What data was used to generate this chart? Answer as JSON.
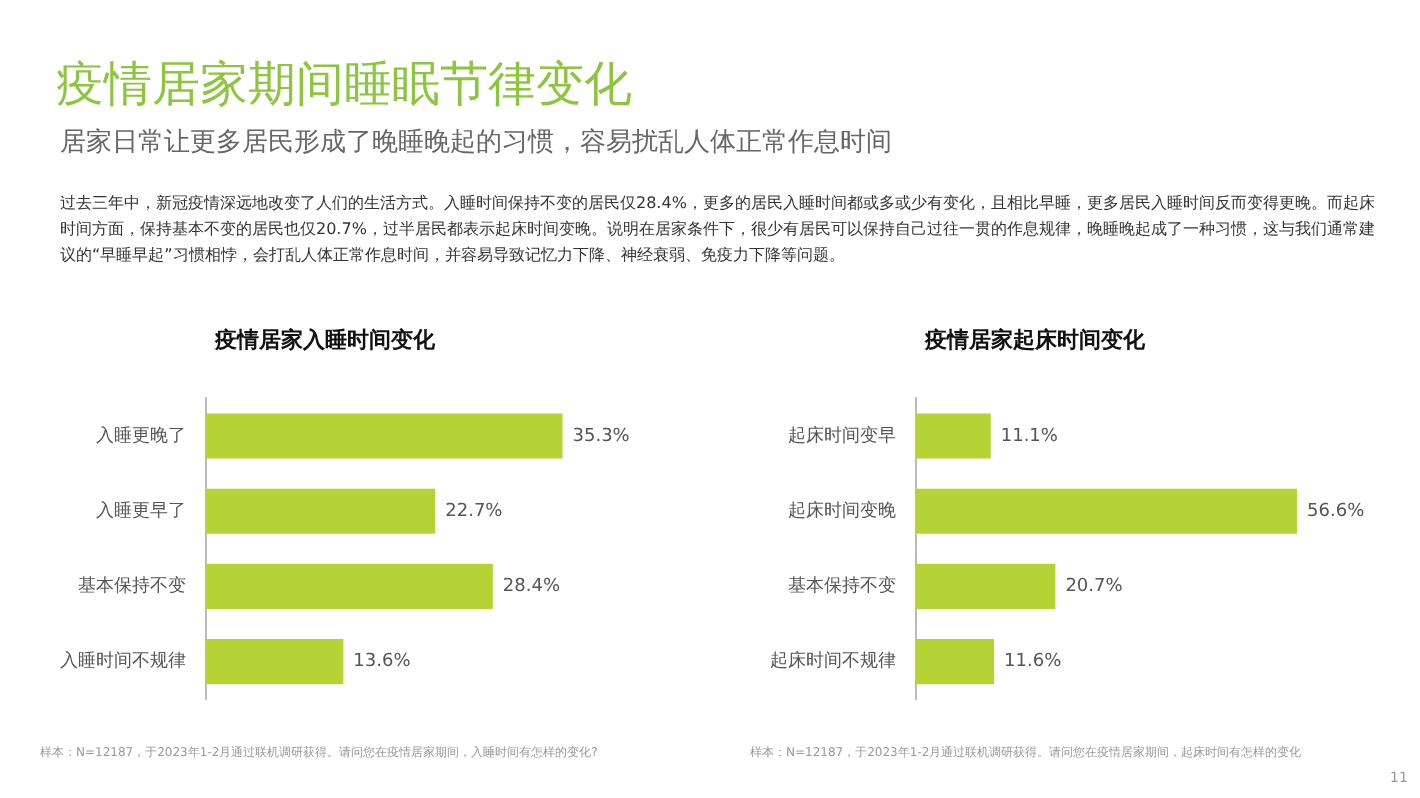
{
  "chart_data": [
    {
      "type": "other",
      "title": "疫情居家期间睡眠节律变化",
      "subtitle": "居家日常让更多居民形成了晚睡晚起的习惯，容易扰乱人体正常作息时间",
      "annotations": [
        "过去三年中，新冠疫情深远地改变了人们的生活方式。入睡时间保持不变的居民仅28.4%，更多的居民入睡时间都或多或少有变化，且相比早睡，更多居民入睡时间反而变得更晚。而起床时间方面，保持基本不变的居民也仅20.7%，过半居民都表示起床时间变晚。说明在居家条件下，很少有居民可以保持自己过往一贯的作息规律，晚睡晚起成了一种习惯，这与我们通常建议的“早睡早起”习惯相悖，会打乱人体正常作息时间，并容易导致记忆力下降、神经衰弱、免疫力下降等问题。"
      ]
    },
    {
      "type": "bar",
      "orientation": "horizontal",
      "title": "疫情居家入睡时间变化",
      "categories": [
        "入睡更晚了",
        "入睡更早了",
        "基本保持不变",
        "入睡时间不规律"
      ],
      "values": [
        35.3,
        22.7,
        28.4,
        13.6
      ],
      "value_labels": [
        "35.3%",
        "22.7%",
        "28.4%",
        "13.6%"
      ],
      "color": "#b5d334",
      "tick_labels": "y",
      "annotations": [
        "样本：N=12187，于2023年1-2月通过联机调研获得。请问您在疫情居家期间，入睡时间有怎样的变化?"
      ]
    },
    {
      "type": "bar",
      "orientation": "horizontal",
      "title": "疫情居家起床时间变化",
      "categories": [
        "起床时间变早",
        "起床时间变晚",
        "基本保持不变",
        "起床时间不规律"
      ],
      "values": [
        11.1,
        56.6,
        20.7,
        11.6
      ],
      "value_labels": [
        "11.1%",
        "56.6%",
        "20.7%",
        "11.6%"
      ],
      "color": "#b5d334",
      "tick_labels": "y",
      "annotations": [
        "样本：N=12187，于2023年1-2月通过联机调研获得。请问您在疫情居家期间，起床时间有怎样的变化",
        "11"
      ]
    }
  ]
}
